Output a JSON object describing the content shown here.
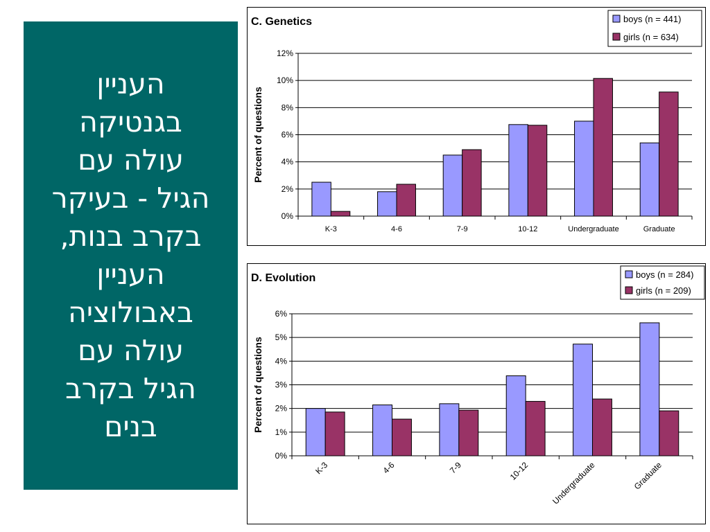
{
  "panel": {
    "lines": [
      "העניין",
      "בגנטיקה",
      "עולה עם",
      "הגיל - בעיקר",
      "בקרב בנות,",
      "העניין",
      "באבולוציה",
      "עולה עם",
      "הגיל בקרב",
      "בנים"
    ]
  },
  "colors": {
    "panel_bg": "#006666",
    "boys": "#9999FF",
    "girls": "#993366"
  },
  "chart_data": [
    {
      "type": "bar",
      "title": "C. Genetics",
      "ylabel": "Percent of questions",
      "xlabel": "",
      "categories": [
        "K-3",
        "4-6",
        "7-9",
        "10-12",
        "Undergraduate",
        "Graduate"
      ],
      "series": [
        {
          "name": "boys (n = 441)",
          "values": [
            2.5,
            1.8,
            4.5,
            6.75,
            7.0,
            5.4
          ]
        },
        {
          "name": "girls (n = 634)",
          "values": [
            0.35,
            2.35,
            4.9,
            6.7,
            10.15,
            9.15
          ]
        }
      ],
      "ylim": [
        0,
        12
      ],
      "yticks": [
        "0%",
        "2%",
        "4%",
        "6%",
        "8%",
        "10%",
        "12%"
      ],
      "grid": true,
      "legend": "top-right",
      "xtick_rotation": 0
    },
    {
      "type": "bar",
      "title": "D. Evolution",
      "ylabel": "Percent of questions",
      "xlabel": "",
      "categories": [
        "K-3",
        "4-6",
        "7-9",
        "10-12",
        "Undergraduate",
        "Graduate"
      ],
      "series": [
        {
          "name": "boys (n = 284)",
          "values": [
            2.0,
            2.15,
            2.2,
            3.38,
            4.72,
            5.62
          ]
        },
        {
          "name": "girls (n = 209)",
          "values": [
            1.85,
            1.55,
            1.93,
            2.3,
            2.4,
            1.9
          ]
        }
      ],
      "ylim": [
        0,
        6
      ],
      "yticks": [
        "0%",
        "1%",
        "2%",
        "3%",
        "4%",
        "5%",
        "6%"
      ],
      "grid": true,
      "legend": "top-right",
      "xtick_rotation": -45
    }
  ]
}
